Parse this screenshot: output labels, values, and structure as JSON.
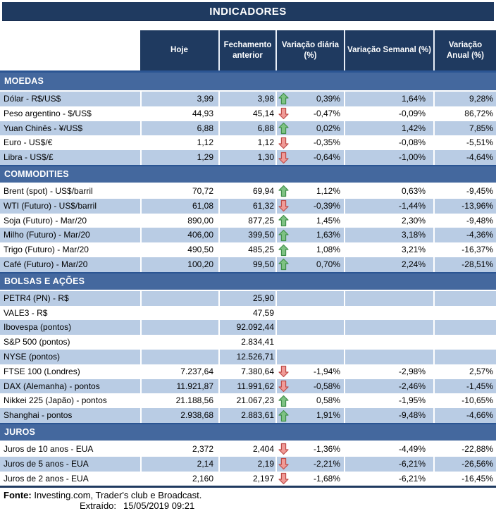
{
  "title": "INDICADORES",
  "columns": [
    "Hoje",
    "Fechamento anterior",
    "Variação diária (%)",
    "Variação Semanal (%)",
    "Variação Anual (%)"
  ],
  "colors": {
    "navy": "#1f3a60",
    "accent_line": "#2b5593",
    "section_bar": "#44689e",
    "row_shade": "#b9cce4",
    "arrow_up": "#7ec283",
    "arrow_down": "#f09b97"
  },
  "sections": [
    {
      "id": "moedas",
      "name": "MOEDAS",
      "rows": [
        {
          "label": "Dólar - R$/US$",
          "cells": [
            "3,99",
            "3,98",
            "0,39%",
            "1,64%",
            "9,28%"
          ],
          "arrow": "up",
          "shade": true
        },
        {
          "label": "Peso argentino - $/US$",
          "cells": [
            "44,93",
            "45,14",
            "-0,47%",
            "-0,09%",
            "86,72%"
          ],
          "arrow": "down",
          "shade": false
        },
        {
          "label": "Yuan Chinês - ¥/US$",
          "cells": [
            "6,88",
            "6,88",
            "0,02%",
            "1,42%",
            "7,85%"
          ],
          "arrow": "up",
          "shade": true
        },
        {
          "label": "Euro - US$/€",
          "cells": [
            "1,12",
            "1,12",
            "-0,35%",
            "-0,08%",
            "-5,51%"
          ],
          "arrow": "down",
          "shade": false
        },
        {
          "label": "Libra - US$/£",
          "cells": [
            "1,29",
            "1,30",
            "-0,64%",
            "-1,00%",
            "-4,64%"
          ],
          "arrow": "down",
          "shade": true
        }
      ]
    },
    {
      "id": "commodities",
      "name": "COMMODITIES",
      "rows": [
        {
          "label": "Brent (spot) - US$/barril",
          "cells": [
            "70,72",
            "69,94",
            "1,12%",
            "0,63%",
            "-9,45%"
          ],
          "arrow": "up",
          "shade": false
        },
        {
          "label": "WTI (Futuro) - US$/barril",
          "cells": [
            "61,08",
            "61,32",
            "-0,39%",
            "-1,44%",
            "-13,96%"
          ],
          "arrow": "down",
          "shade": true
        },
        {
          "label": "Soja (Futuro) - Mar/20",
          "cells": [
            "890,00",
            "877,25",
            "1,45%",
            "2,30%",
            "-9,48%"
          ],
          "arrow": "up",
          "shade": false
        },
        {
          "label": "Milho (Futuro) - Mar/20",
          "cells": [
            "406,00",
            "399,50",
            "1,63%",
            "3,18%",
            "-4,36%"
          ],
          "arrow": "up",
          "shade": true
        },
        {
          "label": "Trigo (Futuro) - Mar/20",
          "cells": [
            "490,50",
            "485,25",
            "1,08%",
            "3,21%",
            "-16,37%"
          ],
          "arrow": "up",
          "shade": false
        },
        {
          "label": "Café (Futuro) - Mar/20",
          "cells": [
            "100,20",
            "99,50",
            "0,70%",
            "2,24%",
            "-28,51%"
          ],
          "arrow": "up",
          "shade": true
        }
      ]
    },
    {
      "id": "bolsas-e-acoes",
      "name": "BOLSAS E AÇÕES",
      "rows": [
        {
          "label": "PETR4 (PN) - R$",
          "cells": [
            "",
            "25,90",
            "",
            "",
            ""
          ],
          "arrow": null,
          "shade": true
        },
        {
          "label": "VALE3 - R$",
          "cells": [
            "",
            "47,59",
            "",
            "",
            ""
          ],
          "arrow": null,
          "shade": false
        },
        {
          "label": "Ibovespa (pontos)",
          "cells": [
            "",
            "92.092,44",
            "",
            "",
            ""
          ],
          "arrow": null,
          "shade": true
        },
        {
          "label": "S&P 500 (pontos)",
          "cells": [
            "",
            "2.834,41",
            "",
            "",
            ""
          ],
          "arrow": null,
          "shade": false
        },
        {
          "label": "NYSE (pontos)",
          "cells": [
            "",
            "12.526,71",
            "",
            "",
            ""
          ],
          "arrow": null,
          "shade": true
        },
        {
          "label": "FTSE 100 (Londres)",
          "cells": [
            "7.237,64",
            "7.380,64",
            "-1,94%",
            "-2,98%",
            "2,57%"
          ],
          "arrow": "down",
          "shade": false
        },
        {
          "label": "DAX (Alemanha) - pontos",
          "cells": [
            "11.921,87",
            "11.991,62",
            "-0,58%",
            "-2,46%",
            "-1,45%"
          ],
          "arrow": "down",
          "shade": true
        },
        {
          "label": "Nikkei 225 (Japão) - pontos",
          "cells": [
            "21.188,56",
            "21.067,23",
            "0,58%",
            "-1,95%",
            "-10,65%"
          ],
          "arrow": "up",
          "shade": false
        },
        {
          "label": "Shanghai - pontos",
          "cells": [
            "2.938,68",
            "2.883,61",
            "1,91%",
            "-9,48%",
            "-4,66%"
          ],
          "arrow": "up",
          "shade": true
        }
      ]
    },
    {
      "id": "juros",
      "name": "JUROS",
      "rows": [
        {
          "label": "Juros de 10 anos - EUA",
          "cells": [
            "2,372",
            "2,404",
            "-1,36%",
            "-4,49%",
            "-22,88%"
          ],
          "arrow": "down",
          "shade": false
        },
        {
          "label": "Juros de 5 anos - EUA",
          "cells": [
            "2,14",
            "2,19",
            "-2,21%",
            "-6,21%",
            "-26,56%"
          ],
          "arrow": "down",
          "shade": true
        },
        {
          "label": "Juros de 2 anos - EUA",
          "cells": [
            "2,160",
            "2,197",
            "-1,68%",
            "-6,21%",
            "-16,45%"
          ],
          "arrow": "down",
          "shade": false
        }
      ]
    }
  ],
  "footer": {
    "fonte_label": "Fonte:",
    "fonte_text": "Investing.com, Trader's club e Broadcast.",
    "extraido_label": "Extraído:",
    "extraido_value": "15/05/2019 09:21"
  }
}
